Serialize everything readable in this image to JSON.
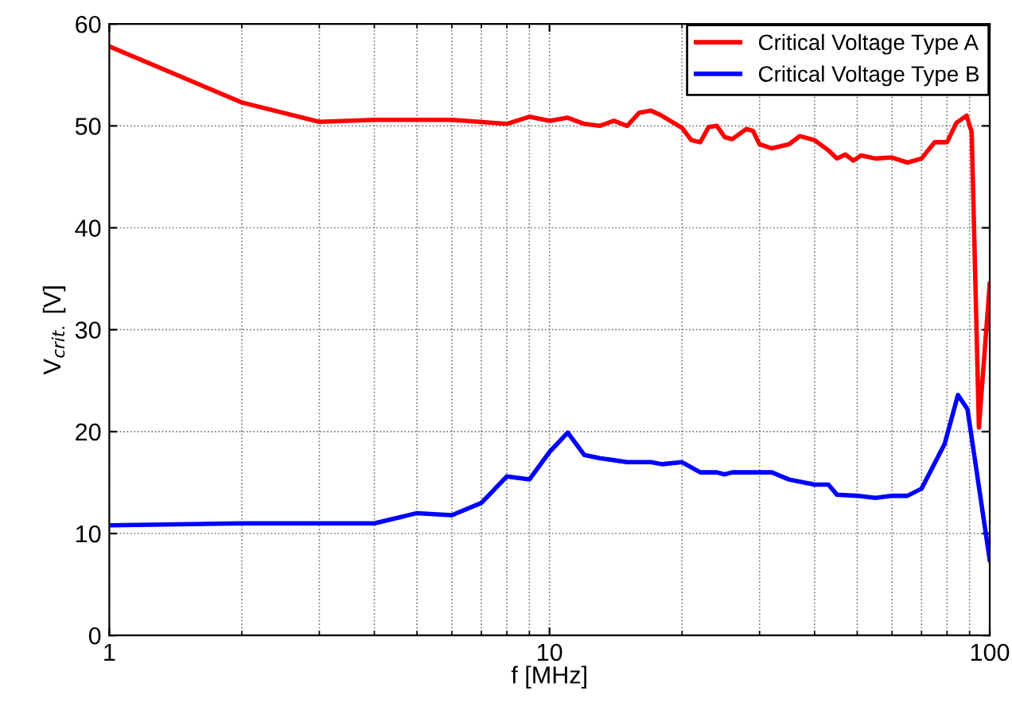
{
  "chart_data": {
    "type": "line",
    "xlabel": "f [MHz]",
    "ylabel": "V$_{crit.}$ [V]",
    "log": "x",
    "xlim": [
      1,
      100
    ],
    "xticks": [
      1,
      10,
      100
    ],
    "ylim": [
      0,
      60
    ],
    "yticks": [
      0,
      10,
      20,
      30,
      40,
      50,
      60
    ],
    "grid": true,
    "legend": "top right",
    "marker": "none",
    "line_style": "solid",
    "series": [
      {
        "name": "Critical Voltage Type A",
        "color": "#ff0000",
        "x": [
          1,
          2,
          3,
          4,
          5,
          6,
          8,
          9,
          10,
          11,
          12,
          13,
          14,
          15,
          16,
          17,
          18,
          20,
          21,
          22,
          23,
          24,
          25,
          26,
          28,
          29,
          30,
          32,
          35,
          37,
          40,
          43,
          45,
          47,
          49,
          51,
          55,
          60,
          65,
          70,
          75,
          80,
          84,
          88.6,
          91,
          94.5,
          100
        ],
        "values": [
          57.8,
          52.3,
          50.4,
          50.6,
          50.6,
          50.6,
          50.2,
          50.9,
          50.5,
          50.8,
          50.2,
          50,
          50.5,
          50,
          51.3,
          51.5,
          51,
          49.8,
          48.6,
          48.4,
          49.9,
          50,
          48.9,
          48.7,
          49.7,
          49.5,
          48.2,
          47.8,
          48.2,
          49,
          48.6,
          47.6,
          46.8,
          47.2,
          46.6,
          47.1,
          46.8,
          46.9,
          46.4,
          46.8,
          48.4,
          48.4,
          50.3,
          51,
          49.4,
          20.4,
          34.5
        ]
      },
      {
        "name": "Critical Voltage Type B",
        "color": "#0000ff",
        "x": [
          1,
          2,
          3,
          4,
          5,
          6,
          7,
          8,
          9,
          10,
          11,
          12,
          13,
          15,
          17,
          18,
          20,
          22,
          24,
          25,
          26,
          30,
          32,
          35,
          40,
          43,
          45,
          50,
          55,
          60,
          65,
          70,
          79,
          84.7,
          89,
          100
        ],
        "values": [
          10.8,
          11,
          11,
          11,
          12,
          11.8,
          13,
          15.6,
          15.3,
          18,
          19.9,
          17.7,
          17.4,
          17,
          17,
          16.8,
          17,
          16,
          16,
          15.8,
          16,
          16,
          16,
          15.3,
          14.8,
          14.8,
          13.8,
          13.7,
          13.5,
          13.7,
          13.7,
          14.4,
          18.8,
          23.6,
          22.2,
          7.4
        ]
      }
    ]
  }
}
